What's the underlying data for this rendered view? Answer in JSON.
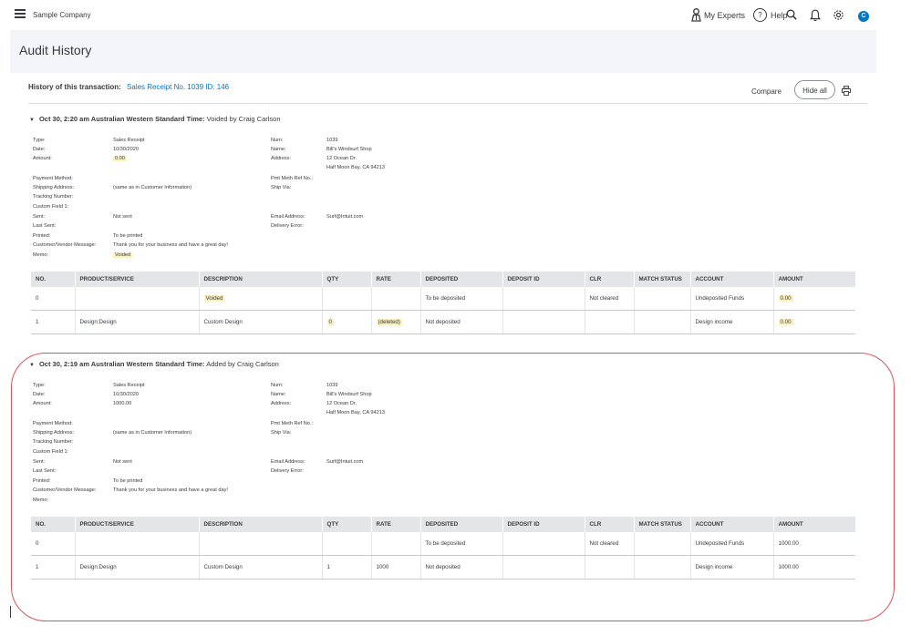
{
  "app": {
    "company": "Sample Company",
    "nav": {
      "my_experts": "My Experts",
      "help": "Help"
    },
    "avatar_letter": "C"
  },
  "page": {
    "title": "Audit History",
    "history_label": "History of this transaction:",
    "history_link": "Sales Receipt No. 1039 ID: 146",
    "compare": "Compare",
    "hide_all": "Hide all"
  },
  "entries": [
    {
      "time": "Oct 30, 2:20 am Australian Western Standard Time:",
      "action": "Voided by Craig Carlson",
      "fields": {
        "type_label": "Type:",
        "type": "Sales Receipt",
        "date_label": "Date:",
        "date": "10/30/2020",
        "amount_label": "Amount:",
        "amount": "0.00",
        "payment_method_label": "Payment Method:",
        "shipping_address_label": "Shipping Address:",
        "shipping_address": "(same as in Customer Information)",
        "tracking_label": "Tracking Number:",
        "custom_field_label": "Custom Field 1:",
        "sent_label": "Sent:",
        "sent": "Not sent",
        "last_sent_label": "Last Sent:",
        "printed_label": "Printed:",
        "printed": "To be printed",
        "message_label": "Customer/Vendor Message:",
        "message": "Thank you for your business and have a great day!",
        "memo_label": "Memo:",
        "memo": "Voided",
        "num_label": "Num:",
        "num": "1039",
        "name_label": "Name:",
        "name": "Bill's Windsurf Shop",
        "address_label": "Address:",
        "address_line1": "12 Ocean Dr.",
        "address_line2": "Half Moon Bay, CA 94213",
        "pmt_ref_label": "Pmt Meth Ref No.:",
        "ship_via_label": "Ship Via:",
        "email_label": "Email Address:",
        "email": "Surf@Intuit.com",
        "delivery_error_label": "Delivery Error:"
      },
      "rows": [
        {
          "no": "0",
          "product": "",
          "description": "Voided",
          "qty": "",
          "rate": "",
          "deposited": "To be deposited",
          "deposit_id": "",
          "clr": "Not cleared",
          "match": "",
          "account": "Undeposited Funds",
          "amount": "0.00"
        },
        {
          "no": "1",
          "product": "Design:Design",
          "description": "Custom Design",
          "qty": "0",
          "rate": "(deleted)",
          "deposited": "Not deposited",
          "deposit_id": "",
          "clr": "",
          "match": "",
          "account": "Design income",
          "amount": "0.00"
        }
      ]
    },
    {
      "time": "Oct 30, 2:19 am Australian Western Standard Time:",
      "action": "Added by Craig Carlson",
      "fields": {
        "type_label": "Type:",
        "type": "Sales Receipt",
        "date_label": "Date:",
        "date": "10/30/2020",
        "amount_label": "Amount:",
        "amount": "1000.00",
        "payment_method_label": "Payment Method:",
        "shipping_address_label": "Shipping Address:",
        "shipping_address": "(same as in Customer Information)",
        "tracking_label": "Tracking Number:",
        "custom_field_label": "Custom Field 1:",
        "sent_label": "Sent:",
        "sent": "Not sent",
        "last_sent_label": "Last Sent:",
        "printed_label": "Printed:",
        "printed": "To be printed",
        "message_label": "Customer/Vendor Message:",
        "message": "Thank you for your business and have a great day!",
        "memo_label": "Memo:",
        "num_label": "Num:",
        "num": "1039",
        "name_label": "Name:",
        "name": "Bill's Windsurf Shop",
        "address_label": "Address:",
        "address_line1": "12 Ocean Dr.",
        "address_line2": "Half Moon Bay, CA 94213",
        "pmt_ref_label": "Pmt Meth Ref No.:",
        "ship_via_label": "Ship Via:",
        "email_label": "Email Address:",
        "email": "Surf@Intuit.com",
        "delivery_error_label": "Delivery Error:"
      },
      "rows": [
        {
          "no": "0",
          "product": "",
          "description": "",
          "qty": "",
          "rate": "",
          "deposited": "To be deposited",
          "deposit_id": "",
          "clr": "Not cleared",
          "match": "",
          "account": "Undeposited Funds",
          "amount": "1000.00"
        },
        {
          "no": "1",
          "product": "Design:Design",
          "description": "Custom Design",
          "qty": "1",
          "rate": "1000",
          "deposited": "Not deposited",
          "deposit_id": "",
          "clr": "",
          "match": "",
          "account": "Design income",
          "amount": "1000.00"
        }
      ]
    }
  ],
  "table_headers": [
    "NO.",
    "PRODUCT/SERVICE",
    "DESCRIPTION",
    "QTY",
    "RATE",
    "DEPOSITED",
    "DEPOSIT ID",
    "CLR",
    "MATCH STATUS",
    "ACCOUNT",
    "AMOUNT"
  ],
  "colors": {
    "link": "#0077c5",
    "highlight": "#fbf2c0",
    "outline": "#d9545c",
    "header_band": "#f4f5f8"
  }
}
